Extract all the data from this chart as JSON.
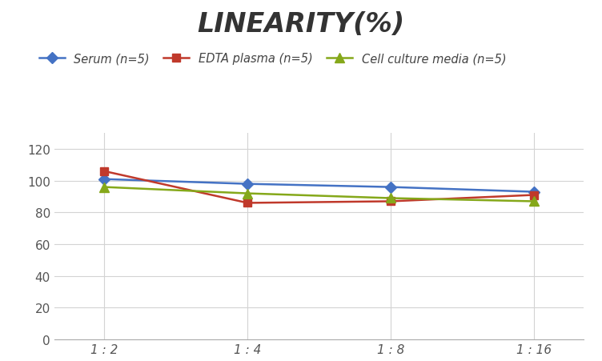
{
  "title": "LINEARITY(%)",
  "title_fontsize": 24,
  "title_fontstyle": "italic",
  "title_fontweight": "bold",
  "x_labels": [
    "1 : 2",
    "1 : 4",
    "1 : 8",
    "1 : 16"
  ],
  "x_positions": [
    0,
    1,
    2,
    3
  ],
  "series": [
    {
      "label": "Serum (n=5)",
      "values": [
        101,
        98,
        96,
        93
      ],
      "color": "#4472C4",
      "marker": "D",
      "markersize": 7,
      "linewidth": 1.8
    },
    {
      "label": "EDTA plasma (n=5)",
      "values": [
        106,
        86,
        87,
        91
      ],
      "color": "#C0392B",
      "marker": "s",
      "markersize": 7,
      "linewidth": 1.8
    },
    {
      "label": "Cell culture media (n=5)",
      "values": [
        96,
        92,
        89,
        87
      ],
      "color": "#85A81A",
      "marker": "^",
      "markersize": 8,
      "linewidth": 1.8
    }
  ],
  "ylim": [
    0,
    130
  ],
  "yticks": [
    0,
    20,
    40,
    60,
    80,
    100,
    120
  ],
  "background_color": "#ffffff",
  "grid_color": "#d3d3d3",
  "legend_fontsize": 10.5,
  "tick_fontsize": 11,
  "tick_color": "#555555"
}
